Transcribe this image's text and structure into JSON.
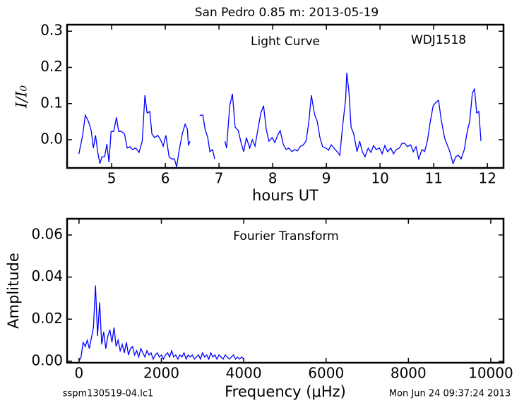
{
  "chart_data": [
    {
      "type": "line",
      "title": "San Pedro 0.85 m:  2013-05-19",
      "xlabel": "hours UT",
      "ylabel": "I/I₀",
      "annotations": [
        "Light Curve",
        "WDJ1518"
      ],
      "color": "#0000ff",
      "xlim": [
        4.17,
        12.3
      ],
      "ylim": [
        -0.078,
        0.318
      ],
      "xticks": [
        5,
        6,
        7,
        8,
        9,
        10,
        11,
        12
      ],
      "yticks": [
        {
          "value": 0,
          "label": "0.0"
        },
        0.1,
        0.2,
        0.3
      ],
      "x": [
        4.39,
        4.46,
        4.51,
        4.57,
        4.62,
        4.66,
        4.7,
        4.74,
        4.78,
        4.82,
        4.87,
        4.91,
        4.95,
        4.99,
        5.04,
        5.09,
        5.13,
        5.18,
        5.24,
        5.29,
        5.34,
        5.39,
        5.45,
        5.51,
        5.57,
        5.62,
        5.66,
        5.71,
        5.75,
        5.8,
        5.86,
        5.91,
        5.96,
        6.01,
        6.07,
        6.12,
        6.17,
        6.21,
        6.26,
        6.32,
        6.37,
        6.41,
        6.43,
        6.46,
        6.55,
        6.64,
        6.7,
        6.74,
        6.79,
        6.83,
        6.88,
        6.92,
        7.0,
        7.11,
        7.14,
        7.2,
        7.25,
        7.3,
        7.36,
        7.41,
        7.46,
        7.51,
        7.57,
        7.62,
        7.67,
        7.72,
        7.78,
        7.83,
        7.88,
        7.93,
        7.99,
        8.04,
        8.09,
        8.14,
        8.2,
        8.25,
        8.3,
        8.36,
        8.41,
        8.46,
        8.51,
        8.57,
        8.62,
        8.67,
        8.72,
        8.78,
        8.83,
        8.88,
        8.93,
        8.99,
        9.04,
        9.09,
        9.14,
        9.2,
        9.25,
        9.3,
        9.36,
        9.38,
        9.42,
        9.46,
        9.51,
        9.57,
        9.62,
        9.67,
        9.72,
        9.78,
        9.83,
        9.88,
        9.93,
        9.99,
        10.04,
        10.09,
        10.14,
        10.2,
        10.25,
        10.3,
        10.36,
        10.41,
        10.46,
        10.51,
        10.57,
        10.62,
        10.67,
        10.72,
        10.78,
        10.83,
        10.88,
        10.93,
        10.99,
        11.04,
        11.09,
        11.14,
        11.2,
        11.25,
        11.3,
        11.36,
        11.41,
        11.46,
        11.51,
        11.57,
        11.62,
        11.67,
        11.72,
        11.76,
        11.8,
        11.84,
        11.88
      ],
      "values": [
        -0.039,
        0.012,
        0.068,
        0.05,
        0.025,
        -0.023,
        0.012,
        -0.033,
        -0.066,
        -0.047,
        -0.047,
        -0.012,
        -0.062,
        0.023,
        0.023,
        0.062,
        0.023,
        0.023,
        0.016,
        -0.023,
        -0.019,
        -0.027,
        -0.023,
        -0.035,
        -0.004,
        0.123,
        0.074,
        0.078,
        0.016,
        0.006,
        0.012,
        0.0,
        -0.018,
        0.012,
        -0.047,
        -0.053,
        -0.053,
        -0.075,
        -0.027,
        0.019,
        0.043,
        0.029,
        -0.016,
        -0.004,
        null,
        0.068,
        0.068,
        0.029,
        0.006,
        -0.033,
        -0.027,
        -0.053,
        null,
        -0.004,
        -0.023,
        0.094,
        0.127,
        0.035,
        0.025,
        -0.008,
        -0.033,
        0.006,
        -0.023,
        0.0,
        -0.018,
        0.025,
        0.074,
        0.094,
        0.029,
        -0.004,
        0.006,
        -0.008,
        0.012,
        0.025,
        -0.014,
        -0.027,
        -0.023,
        -0.033,
        -0.027,
        -0.031,
        -0.019,
        -0.014,
        -0.004,
        0.045,
        0.123,
        0.07,
        0.051,
        0.006,
        -0.019,
        -0.023,
        -0.029,
        -0.014,
        -0.023,
        -0.033,
        -0.043,
        0.035,
        0.113,
        0.185,
        0.133,
        0.035,
        0.016,
        -0.033,
        -0.004,
        -0.033,
        -0.047,
        -0.023,
        -0.035,
        -0.016,
        -0.027,
        -0.023,
        -0.039,
        -0.016,
        -0.033,
        -0.023,
        -0.039,
        -0.027,
        -0.023,
        -0.01,
        -0.01,
        -0.019,
        -0.014,
        -0.033,
        -0.019,
        -0.053,
        -0.027,
        -0.033,
        -0.004,
        0.045,
        0.094,
        0.103,
        0.109,
        0.055,
        0.006,
        -0.014,
        -0.033,
        -0.066,
        -0.047,
        -0.043,
        -0.053,
        -0.027,
        0.019,
        0.051,
        0.129,
        0.14,
        0.074,
        0.078,
        -0.004
      ]
    },
    {
      "type": "line",
      "xlabel": "Frequency (μHz)",
      "ylabel": "Amplitude",
      "annotations": [
        "Fourier Transform"
      ],
      "color": "#0000ff",
      "xlim": [
        -290,
        10310
      ],
      "ylim": [
        -0.0007,
        0.0677
      ],
      "xticks": [
        0,
        2000,
        4000,
        6000,
        8000,
        10000
      ],
      "yticks": [
        {
          "value": 0,
          "label": "0.00"
        },
        {
          "value": 0.02,
          "label": "0.02"
        },
        {
          "value": 0.04,
          "label": "0.04"
        },
        {
          "value": 0.06,
          "label": "0.06"
        }
      ],
      "x": [
        0,
        50,
        100,
        150,
        200,
        250,
        300,
        350,
        400,
        450,
        500,
        550,
        600,
        650,
        700,
        750,
        800,
        850,
        900,
        950,
        1000,
        1050,
        1100,
        1150,
        1200,
        1250,
        1300,
        1350,
        1400,
        1450,
        1500,
        1550,
        1600,
        1650,
        1700,
        1750,
        1800,
        1850,
        1900,
        1950,
        2000,
        2050,
        2100,
        2150,
        2200,
        2250,
        2300,
        2350,
        2400,
        2450,
        2500,
        2550,
        2600,
        2650,
        2700,
        2750,
        2800,
        2850,
        2900,
        2950,
        3000,
        3050,
        3100,
        3150,
        3200,
        3250,
        3300,
        3350,
        3400,
        3450,
        3500,
        3550,
        3600,
        3650,
        3700,
        3750,
        3800,
        3850,
        3900,
        3950,
        4000
      ],
      "values": [
        0.0,
        0.002,
        0.009,
        0.007,
        0.01,
        0.006,
        0.011,
        0.016,
        0.036,
        0.012,
        0.028,
        0.008,
        0.014,
        0.006,
        0.012,
        0.015,
        0.009,
        0.016,
        0.007,
        0.01,
        0.005,
        0.008,
        0.004,
        0.009,
        0.003,
        0.006,
        0.007,
        0.003,
        0.005,
        0.002,
        0.006,
        0.004,
        0.002,
        0.005,
        0.003,
        0.004,
        0.001,
        0.003,
        0.004,
        0.002,
        0.003,
        0.001,
        0.003,
        0.004,
        0.002,
        0.005,
        0.002,
        0.003,
        0.001,
        0.003,
        0.002,
        0.004,
        0.001,
        0.003,
        0.002,
        0.003,
        0.001,
        0.002,
        0.003,
        0.001,
        0.004,
        0.002,
        0.003,
        0.001,
        0.004,
        0.002,
        0.003,
        0.001,
        0.003,
        0.002,
        0.001,
        0.003,
        0.002,
        0.001,
        0.002,
        0.003,
        0.001,
        0.002,
        0.001,
        0.002,
        0.001
      ]
    }
  ],
  "footer": {
    "file": "sspm130519-04.lc1",
    "date": "Mon Jun 24 09:37:24 2013"
  }
}
